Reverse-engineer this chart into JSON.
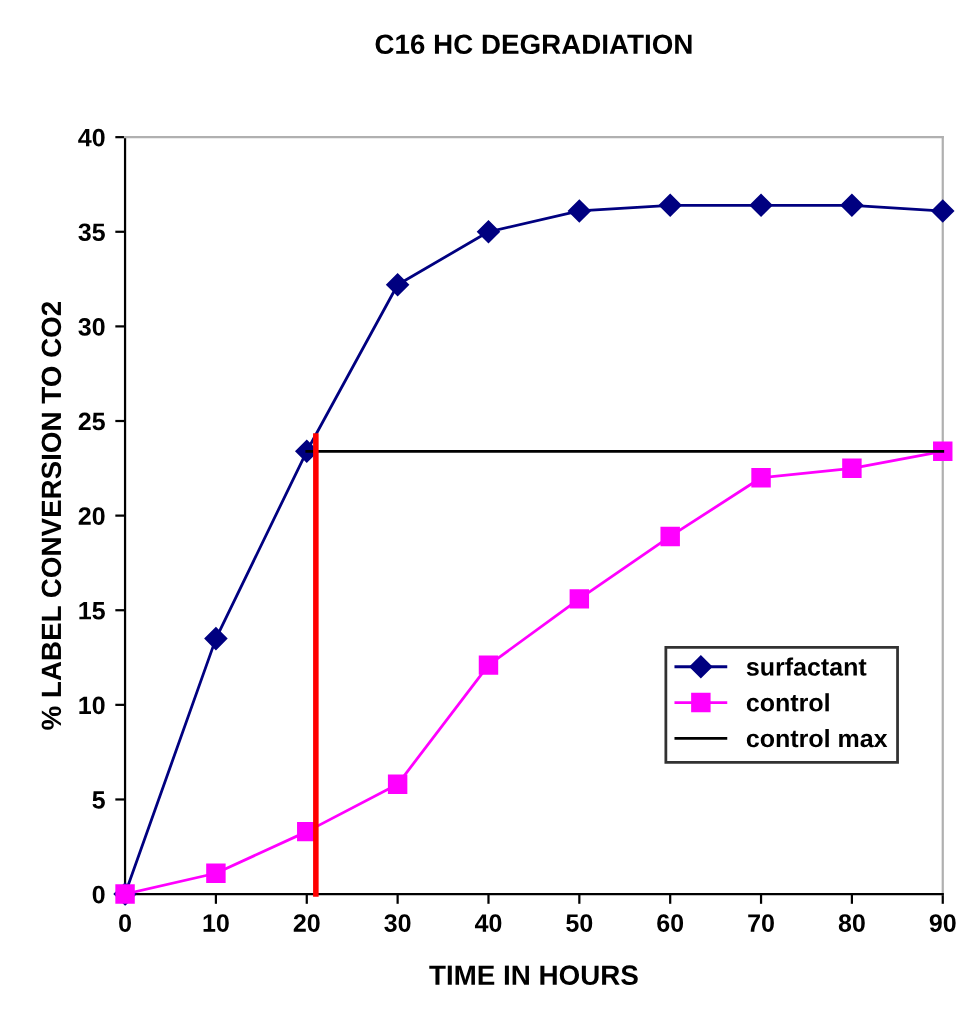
{
  "chart_data": {
    "type": "line",
    "title": "C16 HC DEGRADIATION",
    "xlabel": "TIME IN HOURS",
    "ylabel": "% LABEL CONVERSION TO CO2",
    "xlim": [
      0,
      90
    ],
    "xticks": [
      0,
      10,
      20,
      30,
      40,
      50,
      60,
      70,
      80,
      90
    ],
    "ylim": [
      0,
      40
    ],
    "yticks": [
      0,
      5,
      10,
      15,
      20,
      25,
      30,
      35,
      40
    ],
    "grid": false,
    "legend": "right",
    "series": [
      {
        "name": "surfactant",
        "color": "#000080",
        "marker": "diamond",
        "x": [
          0,
          10,
          20,
          30,
          40,
          50,
          60,
          70,
          80,
          90
        ],
        "values": [
          0,
          13.5,
          23.4,
          32.2,
          35.0,
          36.1,
          36.4,
          36.4,
          36.4,
          36.1
        ]
      },
      {
        "name": "control",
        "color": "#ff00ff",
        "marker": "square",
        "x": [
          0,
          10,
          20,
          30,
          40,
          50,
          60,
          70,
          80,
          90
        ],
        "values": [
          0,
          1.1,
          3.3,
          5.8,
          12.1,
          15.6,
          18.9,
          22.0,
          22.5,
          23.4
        ]
      },
      {
        "name": "control max",
        "color": "#000000",
        "marker": "none",
        "x": [
          20,
          30,
          40,
          50,
          60,
          70,
          80,
          90
        ],
        "values": [
          23.4,
          23.4,
          23.4,
          23.4,
          23.4,
          23.4,
          23.4,
          23.4
        ]
      },
      {
        "color": "#ff0000",
        "marker": "none",
        "x": [
          21,
          21
        ],
        "values": [
          0,
          24.2
        ]
      }
    ]
  }
}
